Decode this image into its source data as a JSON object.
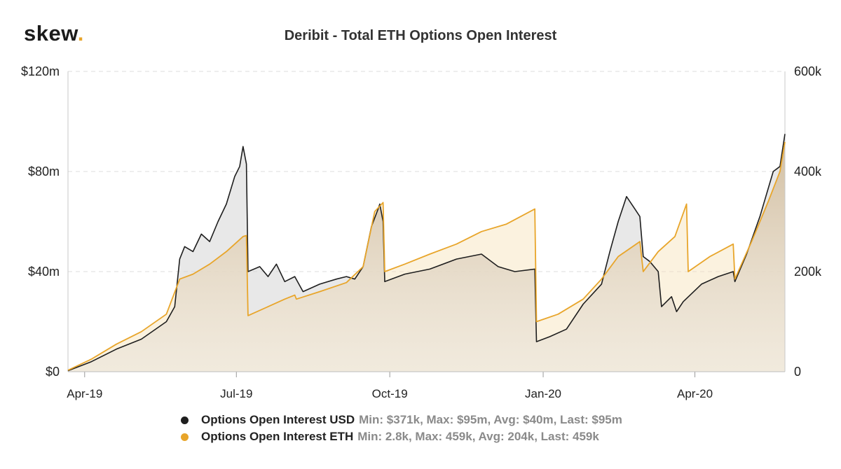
{
  "logo": {
    "text": "skew",
    "dot": "."
  },
  "chart_data": {
    "type": "line",
    "title": "Deribit - Total ETH Options Open Interest",
    "x_ticks": [
      "Apr-19",
      "Jul-19",
      "Oct-19",
      "Jan-20",
      "Apr-20"
    ],
    "x_range": [
      "2019-03-22",
      "2020-05-25"
    ],
    "y_left": {
      "ticks": [
        "$0",
        "$40m",
        "$80m",
        "$120m"
      ],
      "range": [
        0,
        120
      ],
      "unit": "$m"
    },
    "y_right": {
      "ticks": [
        "0",
        "200k",
        "400k",
        "600k"
      ],
      "range": [
        0,
        600
      ],
      "unit": "k ETH"
    },
    "grid": true,
    "legend_position": "bottom",
    "series": [
      {
        "name": "Options Open Interest USD",
        "axis": "left",
        "color": "#1e1e1e",
        "stats": "Min: $371k, Max: $95m, Avg: $40m, Last: $95m",
        "points": [
          [
            "2019-03-22",
            0.4
          ],
          [
            "2019-04-05",
            4
          ],
          [
            "2019-04-20",
            9
          ],
          [
            "2019-05-05",
            13
          ],
          [
            "2019-05-20",
            20
          ],
          [
            "2019-05-25",
            26
          ],
          [
            "2019-05-28",
            45
          ],
          [
            "2019-05-31",
            50
          ],
          [
            "2019-06-05",
            48
          ],
          [
            "2019-06-10",
            55
          ],
          [
            "2019-06-15",
            52
          ],
          [
            "2019-06-20",
            60
          ],
          [
            "2019-06-25",
            67
          ],
          [
            "2019-06-30",
            78
          ],
          [
            "2019-07-03",
            82
          ],
          [
            "2019-07-05",
            90
          ],
          [
            "2019-07-07",
            83
          ],
          [
            "2019-07-08",
            40
          ],
          [
            "2019-07-15",
            42
          ],
          [
            "2019-07-20",
            38
          ],
          [
            "2019-07-25",
            43
          ],
          [
            "2019-07-30",
            36
          ],
          [
            "2019-08-05",
            38
          ],
          [
            "2019-08-10",
            32
          ],
          [
            "2019-08-20",
            35
          ],
          [
            "2019-08-30",
            37
          ],
          [
            "2019-09-05",
            38
          ],
          [
            "2019-09-10",
            37
          ],
          [
            "2019-09-15",
            42
          ],
          [
            "2019-09-20",
            58
          ],
          [
            "2019-09-24",
            65
          ],
          [
            "2019-09-25",
            67
          ],
          [
            "2019-09-27",
            60
          ],
          [
            "2019-09-28",
            36
          ],
          [
            "2019-10-10",
            39
          ],
          [
            "2019-10-25",
            41
          ],
          [
            "2019-11-10",
            45
          ],
          [
            "2019-11-25",
            47
          ],
          [
            "2019-12-05",
            42
          ],
          [
            "2019-12-15",
            40
          ],
          [
            "2019-12-27",
            41
          ],
          [
            "2019-12-28",
            12
          ],
          [
            "2020-01-05",
            14
          ],
          [
            "2020-01-15",
            17
          ],
          [
            "2020-01-25",
            27
          ],
          [
            "2020-02-05",
            35
          ],
          [
            "2020-02-10",
            48
          ],
          [
            "2020-02-15",
            60
          ],
          [
            "2020-02-20",
            70
          ],
          [
            "2020-02-25",
            65
          ],
          [
            "2020-02-28",
            62
          ],
          [
            "2020-03-01",
            46
          ],
          [
            "2020-03-05",
            44
          ],
          [
            "2020-03-10",
            40
          ],
          [
            "2020-03-12",
            26
          ],
          [
            "2020-03-18",
            30
          ],
          [
            "2020-03-21",
            24
          ],
          [
            "2020-03-25",
            28
          ],
          [
            "2020-04-05",
            35
          ],
          [
            "2020-04-15",
            38
          ],
          [
            "2020-04-24",
            40
          ],
          [
            "2020-04-25",
            36
          ],
          [
            "2020-05-02",
            47
          ],
          [
            "2020-05-10",
            62
          ],
          [
            "2020-05-18",
            80
          ],
          [
            "2020-05-22",
            82
          ],
          [
            "2020-05-25",
            95
          ]
        ]
      },
      {
        "name": "Options Open Interest ETH",
        "axis": "right",
        "color": "#e8a52a",
        "stats": "Min: 2.8k, Max: 459k, Avg: 204k, Last: 459k",
        "points": [
          [
            "2019-03-22",
            3
          ],
          [
            "2019-04-05",
            25
          ],
          [
            "2019-04-20",
            55
          ],
          [
            "2019-05-05",
            80
          ],
          [
            "2019-05-20",
            115
          ],
          [
            "2019-05-28",
            185
          ],
          [
            "2019-06-05",
            195
          ],
          [
            "2019-06-15",
            215
          ],
          [
            "2019-06-25",
            240
          ],
          [
            "2019-07-05",
            270
          ],
          [
            "2019-07-07",
            272
          ],
          [
            "2019-07-08",
            112
          ],
          [
            "2019-07-20",
            130
          ],
          [
            "2019-07-30",
            145
          ],
          [
            "2019-08-05",
            153
          ],
          [
            "2019-08-06",
            145
          ],
          [
            "2019-08-20",
            160
          ],
          [
            "2019-09-05",
            178
          ],
          [
            "2019-09-15",
            210
          ],
          [
            "2019-09-22",
            320
          ],
          [
            "2019-09-27",
            338
          ],
          [
            "2019-09-28",
            200
          ],
          [
            "2019-10-10",
            215
          ],
          [
            "2019-10-25",
            235
          ],
          [
            "2019-11-10",
            255
          ],
          [
            "2019-11-25",
            280
          ],
          [
            "2019-12-10",
            295
          ],
          [
            "2019-12-27",
            325
          ],
          [
            "2019-12-28",
            100
          ],
          [
            "2020-01-10",
            115
          ],
          [
            "2020-01-25",
            145
          ],
          [
            "2020-02-05",
            185
          ],
          [
            "2020-02-15",
            230
          ],
          [
            "2020-02-28",
            260
          ],
          [
            "2020-03-01",
            200
          ],
          [
            "2020-03-10",
            240
          ],
          [
            "2020-03-20",
            270
          ],
          [
            "2020-03-27",
            335
          ],
          [
            "2020-03-28",
            200
          ],
          [
            "2020-04-10",
            230
          ],
          [
            "2020-04-24",
            255
          ],
          [
            "2020-04-25",
            185
          ],
          [
            "2020-05-05",
            260
          ],
          [
            "2020-05-15",
            340
          ],
          [
            "2020-05-22",
            400
          ],
          [
            "2020-05-25",
            459
          ]
        ]
      }
    ]
  }
}
